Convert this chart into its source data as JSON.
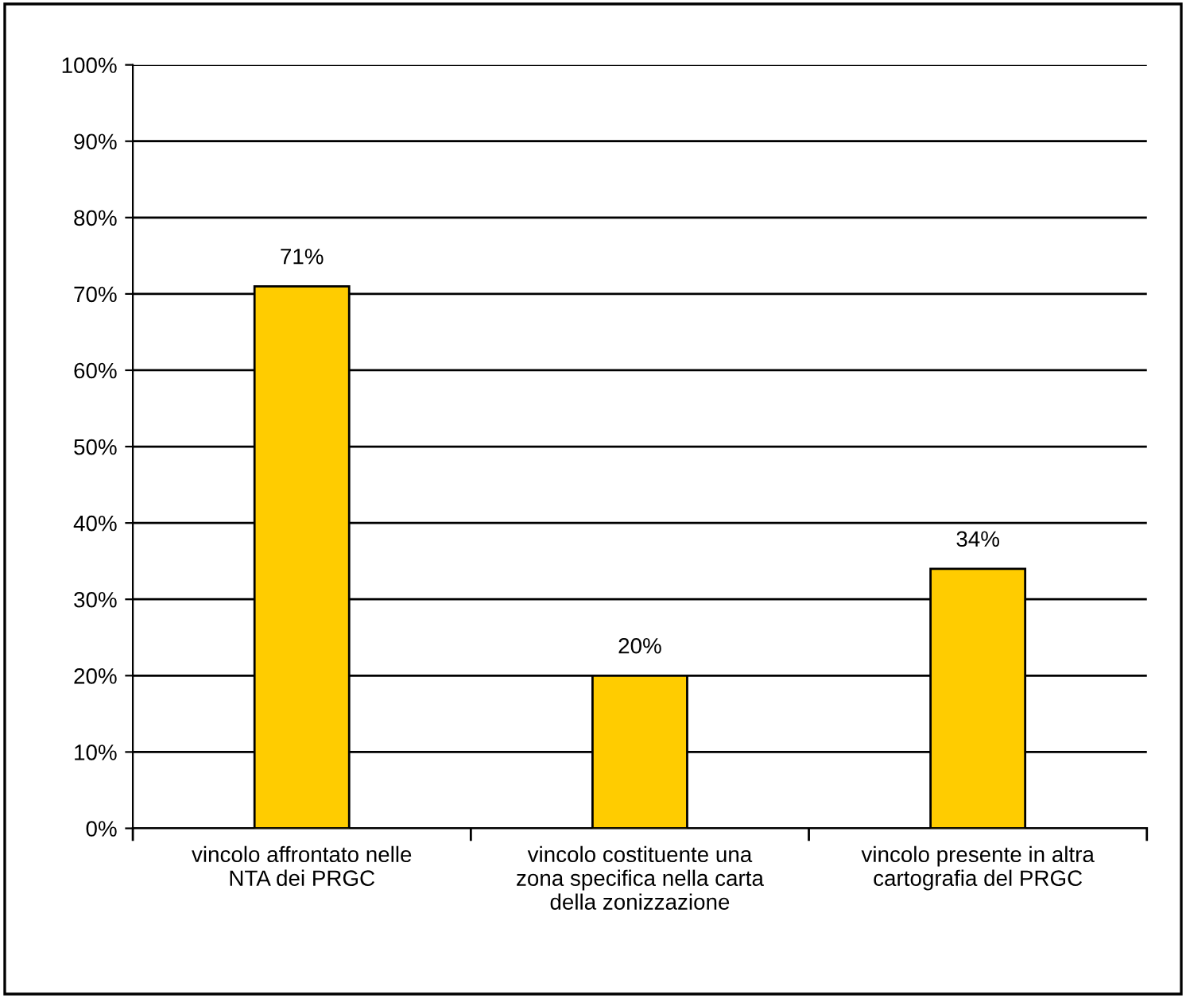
{
  "chart_data": {
    "type": "bar",
    "categories": [
      "vincolo affrontato nelle\nNTA dei PRGC",
      "vincolo costituente una\nzona specifica nella carta\ndella zonizzazione",
      "vincolo presente in altra\ncartografia del PRGC"
    ],
    "values": [
      71,
      20,
      34
    ],
    "color": "#ffcc00",
    "value_labels": [
      "71%",
      "20%",
      "34%"
    ],
    "ylim": [
      0,
      100
    ],
    "yticks": [
      {
        "value": 0,
        "label": "0%"
      },
      {
        "value": 10,
        "label": "10%"
      },
      {
        "value": 20,
        "label": "20%"
      },
      {
        "value": 30,
        "label": "30%"
      },
      {
        "value": 40,
        "label": "40%"
      },
      {
        "value": 50,
        "label": "50%"
      },
      {
        "value": 60,
        "label": "60%"
      },
      {
        "value": 70,
        "label": "70%"
      },
      {
        "value": 80,
        "label": "80%"
      },
      {
        "value": 90,
        "label": "90%"
      },
      {
        "value": 100,
        "label": "100%"
      }
    ],
    "grid": "y",
    "legend": false
  }
}
